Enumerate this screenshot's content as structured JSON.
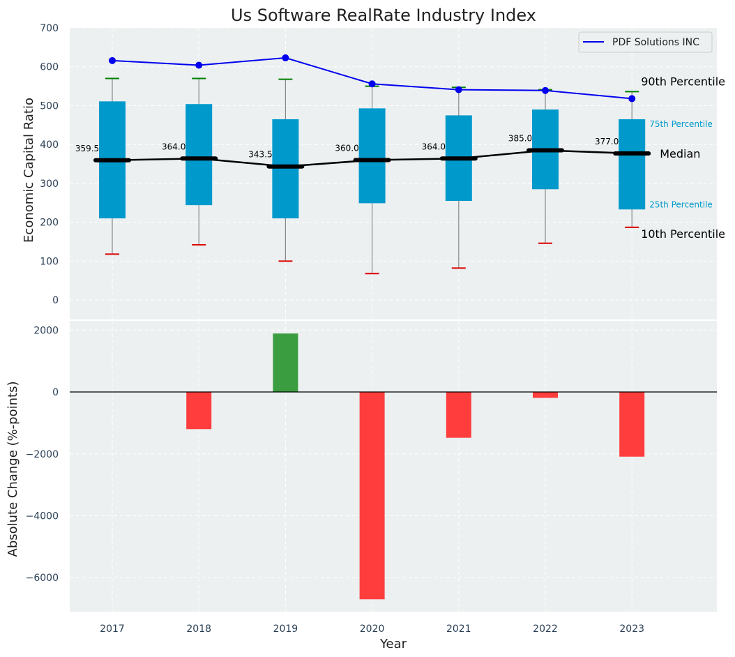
{
  "chart_data": [
    {
      "type": "box",
      "title": "Us Software RealRate Industry Index",
      "xlabel": "",
      "ylabel": "Economic Capital Ratio",
      "ylim": [
        -50,
        700
      ],
      "yticks": [
        0,
        100,
        200,
        300,
        400,
        500,
        600,
        700
      ],
      "categories": [
        "2017",
        "2018",
        "2019",
        "2020",
        "2021",
        "2022",
        "2023"
      ],
      "p10": [
        118,
        142,
        100,
        68,
        82,
        146,
        187
      ],
      "p25": [
        210,
        244,
        210,
        249,
        255,
        285,
        233
      ],
      "median": [
        359.5,
        364.0,
        343.5,
        360.0,
        364.0,
        385.0,
        377.0
      ],
      "median_labels": [
        "359.5",
        "364.0",
        "343.5",
        "360.0",
        "364.0",
        "385.0",
        "377.0"
      ],
      "p75": [
        511,
        504,
        465,
        493,
        475,
        490,
        465
      ],
      "p90": [
        570,
        570,
        568,
        550,
        547,
        541,
        536
      ],
      "series": [
        {
          "name": "PDF Solutions INC",
          "values": [
            616,
            604,
            623,
            556,
            541,
            539,
            518
          ]
        }
      ],
      "annotations": {
        "p90": "90th Percentile",
        "p75": "75th Percentile",
        "median": "Median",
        "p25": "25th Percentile",
        "p10": "10th Percentile"
      },
      "legend": "top-right",
      "grid": true,
      "colors": {
        "box": "#0099cc",
        "company": "#0000ee",
        "median": "#000000",
        "p90": "#008000",
        "p10": "#dd0000",
        "bg": "#ecf0f1"
      }
    },
    {
      "type": "bar",
      "xlabel": "Year",
      "ylabel": "Absolute Change (%-points)",
      "ylim": [
        -7100,
        2300
      ],
      "yticks": [
        -6000,
        -4000,
        -2000,
        0,
        2000
      ],
      "ytick_labels": [
        "−6000",
        "−4000",
        "−2000",
        "0",
        "2000"
      ],
      "categories": [
        "2017",
        "2018",
        "2019",
        "2020",
        "2021",
        "2022",
        "2023"
      ],
      "values": [
        0,
        -1200,
        1890,
        -6700,
        -1480,
        -190,
        -2090
      ],
      "grid": true,
      "colors": {
        "positive": "#3a9d3f",
        "negative": "#ff3d3d"
      }
    }
  ]
}
